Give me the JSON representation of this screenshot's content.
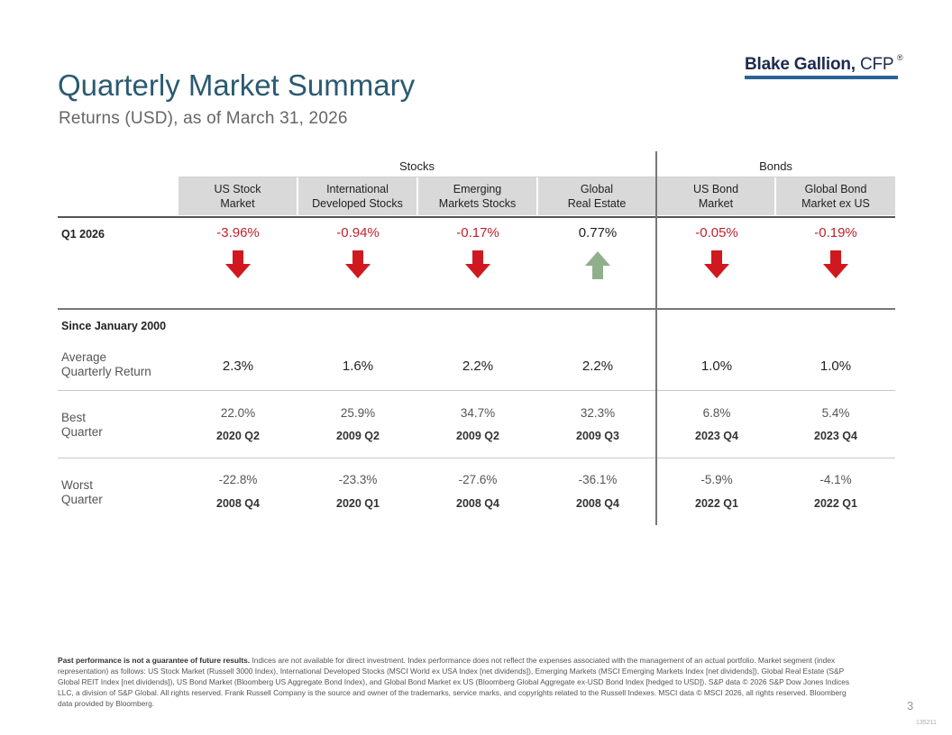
{
  "title": "Quarterly Market Summary",
  "subtitle": "Returns (USD), as of March 31, 2026",
  "logo": {
    "name": "Blake Gallion,",
    "suffix": "CFP",
    "reg": "®"
  },
  "groups": {
    "stocks": "Stocks",
    "bonds": "Bonds"
  },
  "columns": [
    {
      "label": "US Stock\nMarket"
    },
    {
      "label": "International\nDeveloped Stocks"
    },
    {
      "label": "Emerging\nMarkets Stocks"
    },
    {
      "label": "Global\nReal Estate"
    },
    {
      "label": "US Bond\nMarket"
    },
    {
      "label": "Global Bond\nMarket ex US"
    }
  ],
  "q1": {
    "label": "Q1 2026",
    "values": [
      "-3.96%",
      "-0.94%",
      "-0.17%",
      "0.77%",
      "-0.05%",
      "-0.19%"
    ],
    "direction": [
      "down",
      "down",
      "down",
      "up",
      "down",
      "down"
    ],
    "colors": {
      "down": "#d0191f",
      "up": "#8fb08a"
    }
  },
  "since": {
    "label": "Since January 2000",
    "average": {
      "label": "Average\nQuarterly Return",
      "values": [
        "2.3%",
        "1.6%",
        "2.2%",
        "2.2%",
        "1.0%",
        "1.0%"
      ]
    },
    "best": {
      "label": "Best\nQuarter",
      "values": [
        "22.0%",
        "25.9%",
        "34.7%",
        "32.3%",
        "6.8%",
        "5.4%"
      ],
      "quarters": [
        "2020 Q2",
        "2009 Q2",
        "2009 Q2",
        "2009 Q3",
        "2023 Q4",
        "2023 Q4"
      ]
    },
    "worst": {
      "label": "Worst\nQuarter",
      "values": [
        "-22.8%",
        "-23.3%",
        "-27.6%",
        "-36.1%",
        "-5.9%",
        "-4.1%"
      ],
      "quarters": [
        "2008 Q4",
        "2020 Q1",
        "2008 Q4",
        "2008 Q4",
        "2022 Q1",
        "2022 Q1"
      ]
    }
  },
  "footer": {
    "bold": "Past performance is not a guarantee of future results.",
    "text": " Indices are not available for direct investment. Index performance does not reflect the expenses associated with the management of an actual portfolio. Market segment (index representation) as follows: US Stock Market (Russell 3000 Index), International Developed Stocks (MSCI World ex USA Index [net dividends]), Emerging Markets (MSCI Emerging Markets Index [net dividends]), Global Real Estate (S&P Global REIT Index [net dividends]), US Bond Market (Bloomberg US Aggregate Bond Index), and Global Bond Market ex US (Bloomberg Global Aggregate ex-USD Bond Index [hedged to USD]). S&P data © 2026 S&P Dow Jones Indices LLC, a division of S&P Global. All rights reserved. Frank Russell Company is the source and owner of the trademarks, service marks, and copyrights related to the Russell Indexes. MSCI data © MSCI 2026, all rights reserved. Bloomberg data provided by Bloomberg."
  },
  "page_number": "3",
  "doc_code": "135211"
}
